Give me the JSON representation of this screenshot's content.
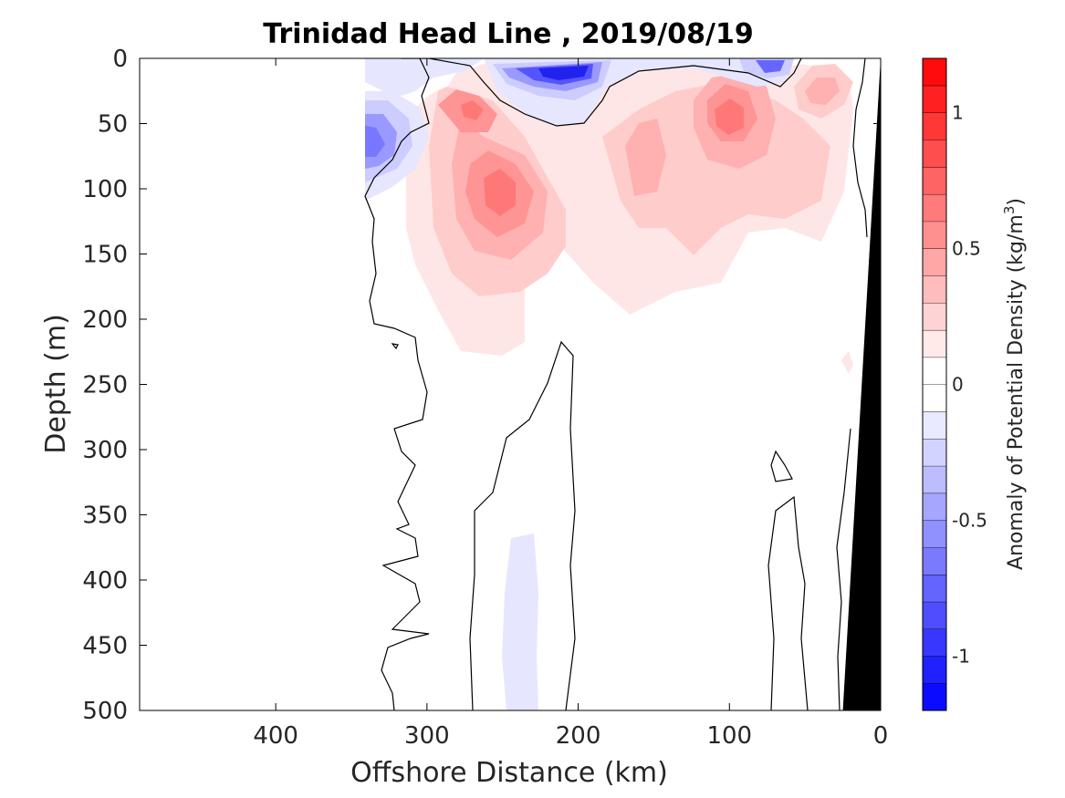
{
  "chart_data": {
    "type": "heatmap",
    "title": "Trinidad Head Line , 2019/08/19",
    "xlabel": "Offshore Distance (km)",
    "ylabel": "Depth (m)",
    "xlim": [
      490,
      0
    ],
    "ylim": [
      0,
      500
    ],
    "x_reversed": true,
    "y_reversed": true,
    "x_ticks": [
      "400",
      "300",
      "200",
      "100",
      "0"
    ],
    "x_tick_values": [
      400,
      300,
      200,
      100,
      0
    ],
    "y_ticks": [
      "0",
      "50",
      "100",
      "150",
      "200",
      "250",
      "300",
      "350",
      "400",
      "450",
      "500"
    ],
    "y_tick_values": [
      0,
      50,
      100,
      150,
      200,
      250,
      300,
      350,
      400,
      450,
      500
    ],
    "colorbar": {
      "label": "Anomaly of Potential Density (kg/m",
      "label_sup": "3",
      "label_close": ")",
      "range": [
        -1.2,
        1.2
      ],
      "ticks": [
        "1",
        "0.5",
        "0",
        "-0.5",
        "-1"
      ],
      "tick_values": [
        1,
        0.5,
        0,
        -0.5,
        -1
      ],
      "levels": 24,
      "negative_color": "#0000ff",
      "positive_color": "#ff0000",
      "zero_color": "#ffffff"
    },
    "land_color": "#000000",
    "seafloor": [
      {
        "distance": 0,
        "depth": 0
      },
      {
        "distance": 25,
        "depth": 500
      },
      {
        "distance": 0,
        "depth": 500
      }
    ],
    "features": [
      {
        "type": "positive",
        "center_distance": 250,
        "center_depth": 100,
        "anomaly": 0.75
      },
      {
        "type": "positive",
        "center_distance": 270,
        "center_depth": 40,
        "anomaly": 0.7
      },
      {
        "type": "positive",
        "center_distance": 100,
        "center_depth": 40,
        "anomaly": 0.75
      },
      {
        "type": "positive",
        "center_distance": 40,
        "center_depth": 25,
        "anomaly": 0.55
      },
      {
        "type": "negative",
        "center_distance": 195,
        "center_depth": 10,
        "anomaly": -0.95
      },
      {
        "type": "negative",
        "center_distance": 75,
        "center_depth": 5,
        "anomaly": -0.7
      },
      {
        "type": "negative",
        "center_distance": 338,
        "center_depth": 65,
        "anomaly": -0.6
      },
      {
        "type": "negative",
        "center_distance": 240,
        "center_depth": 430,
        "anomaly": -0.12
      }
    ]
  }
}
